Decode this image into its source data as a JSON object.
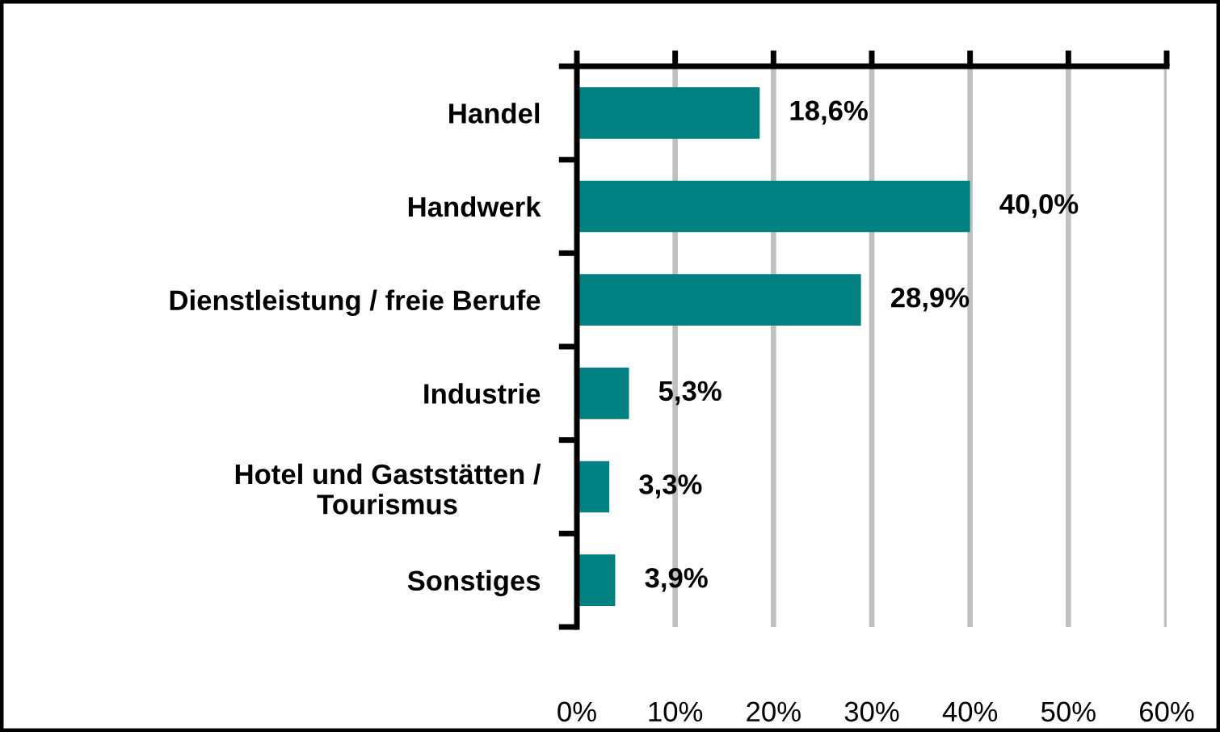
{
  "chart_data": {
    "type": "bar",
    "orientation": "horizontal",
    "categories": [
      "Handel",
      "Handwerk",
      "Dienstleistung / freie Berufe",
      "Industrie",
      "Hotel und Gaststätten /\nTourismus",
      "Sonstiges"
    ],
    "values": [
      18.6,
      40.0,
      28.9,
      5.3,
      3.3,
      3.9
    ],
    "value_labels": [
      "18,6%",
      "40,0%",
      "28,9%",
      "5,3%",
      "3,3%",
      "3,9%"
    ],
    "color": "#008080",
    "xlim": [
      0,
      60
    ],
    "xticks": [
      {
        "value": 0,
        "label": "0%"
      },
      {
        "value": 10,
        "label": "10%"
      },
      {
        "value": 20,
        "label": "20%"
      },
      {
        "value": 30,
        "label": "30%"
      },
      {
        "value": 40,
        "label": "40%"
      },
      {
        "value": 50,
        "label": "50%"
      },
      {
        "value": 60,
        "label": "60%"
      }
    ],
    "grid": "x"
  }
}
